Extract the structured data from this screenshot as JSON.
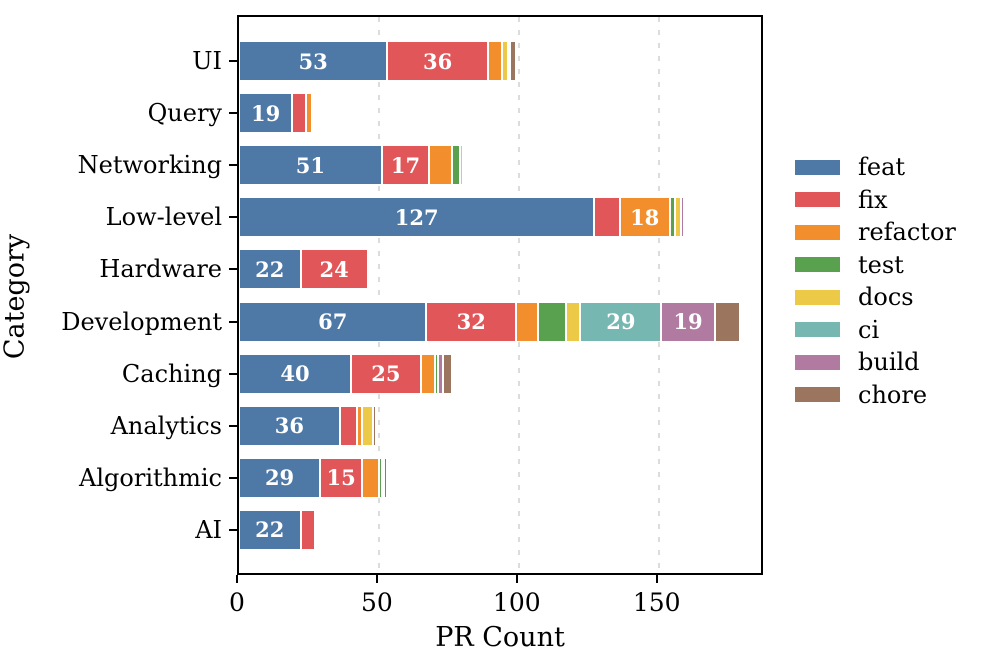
{
  "chart_data": {
    "type": "bar",
    "orientation": "horizontal-stacked",
    "title": "",
    "xlabel": "PR Count",
    "ylabel": "Category",
    "xticks": [
      0,
      50,
      100,
      150
    ],
    "xlim": [
      0,
      188
    ],
    "grid": "vertical-dashed",
    "legend_position": "right-outside",
    "bar_label_min_value": 15,
    "bar_label_color": "#ffffff",
    "categories": [
      "UI",
      "Query",
      "Networking",
      "Low-level",
      "Hardware",
      "Development",
      "Caching",
      "Analytics",
      "Algorithmic",
      "AI"
    ],
    "series": [
      {
        "name": "feat",
        "color": "#4E79A7",
        "values": [
          53,
          19,
          51,
          127,
          22,
          67,
          40,
          36,
          29,
          22
        ]
      },
      {
        "name": "fix",
        "color": "#E15759",
        "values": [
          36,
          5,
          17,
          9,
          24,
          32,
          25,
          6,
          15,
          5
        ]
      },
      {
        "name": "refactor",
        "color": "#F28E2B",
        "values": [
          5,
          2,
          8,
          18,
          1,
          8,
          5,
          2,
          6,
          0
        ]
      },
      {
        "name": "test",
        "color": "#59A14F",
        "values": [
          0,
          0,
          3,
          2,
          0,
          10,
          1,
          0,
          1,
          0
        ]
      },
      {
        "name": "docs",
        "color": "#EDC948",
        "values": [
          2,
          0,
          1,
          2,
          0,
          5,
          0,
          4,
          1,
          1
        ]
      },
      {
        "name": "ci",
        "color": "#76B7B2",
        "values": [
          0,
          0,
          0,
          0,
          0,
          29,
          0,
          0,
          0,
          0
        ]
      },
      {
        "name": "build",
        "color": "#B07AA1",
        "values": [
          1,
          0,
          0,
          1,
          0,
          19,
          2,
          0,
          0,
          0
        ]
      },
      {
        "name": "chore",
        "color": "#9C755F",
        "values": [
          2,
          0,
          0,
          0,
          0,
          9,
          3,
          1,
          1,
          0
        ]
      }
    ],
    "category_totals": [
      99,
      26,
      80,
      159,
      47,
      179,
      76,
      49,
      53,
      28
    ]
  },
  "styles": {
    "background": "#ffffff",
    "axis_color": "#000000",
    "grid_color": "#dcdcdc",
    "text_color": "#000000"
  }
}
